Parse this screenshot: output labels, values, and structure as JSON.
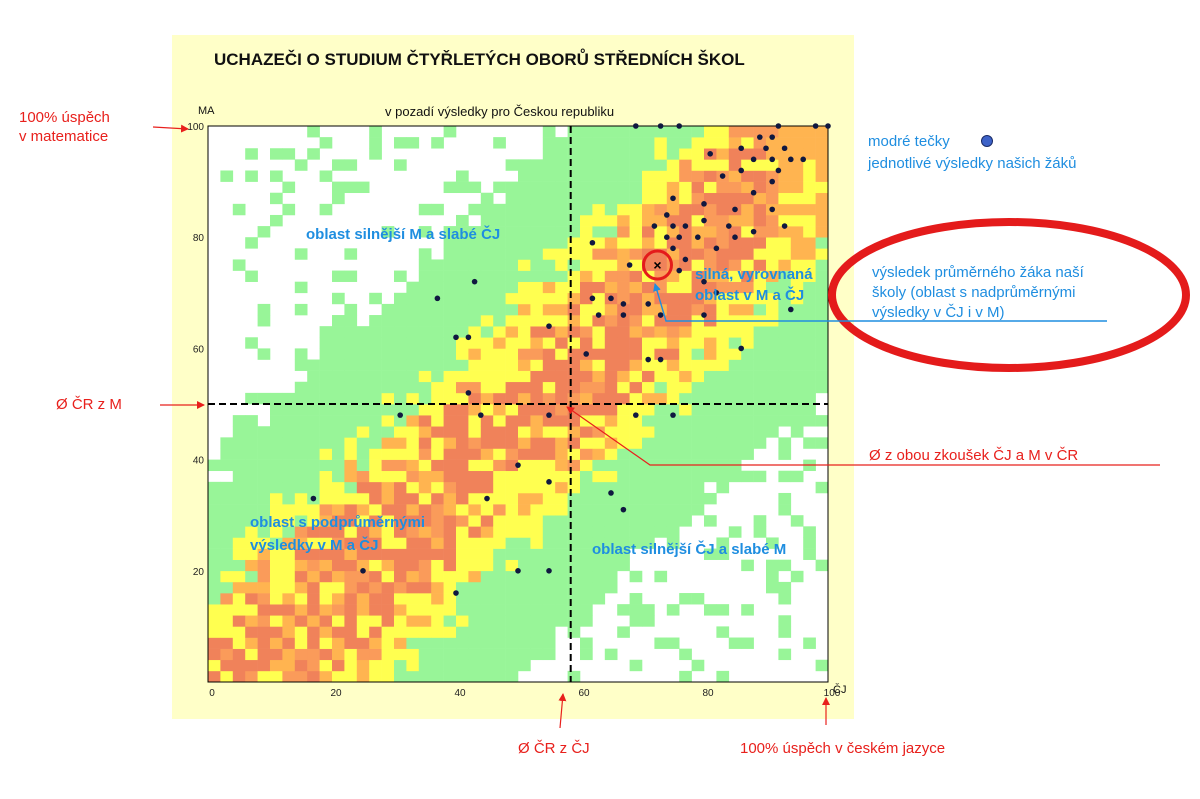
{
  "chart_data": {
    "type": "scatter",
    "title": "UCHAZEČI O STUDIUM ČTYŘLETÝCH OBORŮ STŘEDNÍCH ŠKOL",
    "subtitle": "v pozadí výsledky pro Českou republiku",
    "xlabel": "ČJ",
    "ylabel": "MA",
    "xlim": [
      0,
      100
    ],
    "ylim": [
      0,
      100
    ],
    "x_ticks": [
      0,
      20,
      40,
      60,
      80,
      100
    ],
    "y_ticks": [
      20,
      40,
      60,
      80,
      100
    ],
    "x_tick_labels": [
      "0",
      "20",
      "40",
      "60",
      "80",
      "100"
    ],
    "y_tick_labels": [
      "20",
      "40",
      "60",
      "80",
      "100"
    ],
    "grid": false,
    "mean_cz_x": 58.5,
    "mean_cz_y": 50,
    "school_mean": {
      "x": 72.5,
      "y": 75
    },
    "points": [
      {
        "x": 69,
        "y": 100
      },
      {
        "x": 73,
        "y": 100
      },
      {
        "x": 76,
        "y": 100
      },
      {
        "x": 92,
        "y": 100
      },
      {
        "x": 98,
        "y": 100
      },
      {
        "x": 100,
        "y": 100
      },
      {
        "x": 89,
        "y": 98
      },
      {
        "x": 91,
        "y": 98
      },
      {
        "x": 86,
        "y": 96
      },
      {
        "x": 90,
        "y": 96
      },
      {
        "x": 93,
        "y": 96
      },
      {
        "x": 81,
        "y": 95
      },
      {
        "x": 88,
        "y": 94
      },
      {
        "x": 91,
        "y": 94
      },
      {
        "x": 94,
        "y": 94
      },
      {
        "x": 96,
        "y": 94
      },
      {
        "x": 86,
        "y": 92
      },
      {
        "x": 92,
        "y": 92
      },
      {
        "x": 83,
        "y": 91
      },
      {
        "x": 91,
        "y": 90
      },
      {
        "x": 88,
        "y": 88
      },
      {
        "x": 75,
        "y": 87
      },
      {
        "x": 74,
        "y": 84
      },
      {
        "x": 80,
        "y": 86
      },
      {
        "x": 85,
        "y": 85
      },
      {
        "x": 91,
        "y": 85
      },
      {
        "x": 80,
        "y": 83
      },
      {
        "x": 84,
        "y": 82
      },
      {
        "x": 93,
        "y": 82
      },
      {
        "x": 72,
        "y": 82
      },
      {
        "x": 75,
        "y": 82
      },
      {
        "x": 77,
        "y": 82
      },
      {
        "x": 74,
        "y": 80
      },
      {
        "x": 76,
        "y": 80
      },
      {
        "x": 79,
        "y": 80
      },
      {
        "x": 85,
        "y": 80
      },
      {
        "x": 88,
        "y": 81
      },
      {
        "x": 82,
        "y": 78
      },
      {
        "x": 75,
        "y": 78
      },
      {
        "x": 77,
        "y": 76
      },
      {
        "x": 62,
        "y": 79
      },
      {
        "x": 68,
        "y": 75
      },
      {
        "x": 76,
        "y": 74
      },
      {
        "x": 80,
        "y": 72
      },
      {
        "x": 82,
        "y": 70
      },
      {
        "x": 65,
        "y": 69
      },
      {
        "x": 67,
        "y": 68
      },
      {
        "x": 62,
        "y": 69
      },
      {
        "x": 71,
        "y": 68
      },
      {
        "x": 63,
        "y": 66
      },
      {
        "x": 67,
        "y": 66
      },
      {
        "x": 73,
        "y": 66
      },
      {
        "x": 80,
        "y": 66
      },
      {
        "x": 94,
        "y": 67
      },
      {
        "x": 55,
        "y": 64
      },
      {
        "x": 61,
        "y": 59
      },
      {
        "x": 71,
        "y": 58
      },
      {
        "x": 73,
        "y": 58
      },
      {
        "x": 86,
        "y": 60
      },
      {
        "x": 37,
        "y": 69
      },
      {
        "x": 43,
        "y": 72
      },
      {
        "x": 40,
        "y": 62
      },
      {
        "x": 42,
        "y": 62
      },
      {
        "x": 42,
        "y": 52
      },
      {
        "x": 31,
        "y": 48
      },
      {
        "x": 44,
        "y": 48
      },
      {
        "x": 55,
        "y": 48
      },
      {
        "x": 69,
        "y": 48
      },
      {
        "x": 75,
        "y": 48
      },
      {
        "x": 50,
        "y": 39
      },
      {
        "x": 55,
        "y": 36
      },
      {
        "x": 45,
        "y": 33
      },
      {
        "x": 65,
        "y": 34
      },
      {
        "x": 67,
        "y": 31
      },
      {
        "x": 17,
        "y": 33
      },
      {
        "x": 25,
        "y": 20
      },
      {
        "x": 50,
        "y": 20
      },
      {
        "x": 55,
        "y": 20
      },
      {
        "x": 40,
        "y": 16
      }
    ],
    "legend": "modré tečky jednotlivé výsledky našich žáků"
  },
  "annotations": {
    "y100": [
      "100% úspěch",
      "v matematice"
    ],
    "x100": "100% úspěch v českém jazyce",
    "mean_m": "Ø ČR z M",
    "mean_cj": "Ø ČR z ČJ",
    "mean_both": "Ø z obou zkoušek ČJ a M v ČR",
    "legend_line1": "modré tečky",
    "legend_line2": "jednotlivé výsledky našich žáků",
    "avg_student": [
      "výsledek průměrného žáka naší",
      "školy (oblast s nadprůměrnými",
      "výsledky v ČJ i v M)"
    ],
    "region_strong_m": "oblast silnější M a slabé ČJ",
    "region_strong_both": [
      "silná, vyrovnaná",
      "oblast v M a ČJ"
    ],
    "region_below": [
      "oblast s podprůměrnými",
      "výsledky v M a ČJ"
    ],
    "region_strong_cj": "oblast silnější ČJ a slabé M",
    "school_marker": "×"
  },
  "colors": {
    "panel": "#ffffc8",
    "green": "#98f598",
    "yellow": "#ffff50",
    "orange_light": "#ffb450",
    "orange": "#fa9b5a",
    "red_orange": "#f0825a",
    "dot": "#101840",
    "annotation_red": "#e8201c",
    "annotation_blue": "#1f8ee0",
    "ellipse": "#e41b1b"
  }
}
